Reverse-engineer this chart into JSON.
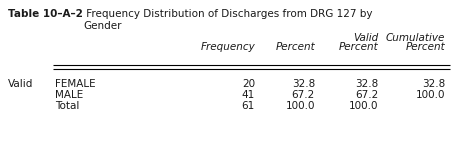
{
  "title_bold": "Table 10–A–2",
  "title_normal": " Frequency Distribution of Discharges from DRG 127 by\nGender",
  "col_headers": [
    "Frequency",
    "Percent",
    "Valid\nPercent",
    "Cumulative\nPercent"
  ],
  "rows": [
    [
      "Valid",
      "FEMALE",
      "20",
      "32.8",
      "32.8",
      "32.8"
    ],
    [
      "",
      "MALE",
      "41",
      "67.2",
      "67.2",
      "100.0"
    ],
    [
      "",
      "Total",
      "61",
      "100.0",
      "100.0",
      ""
    ]
  ],
  "fontsize": 7.5,
  "bg_color": "#ffffff",
  "text_color": "#1a1a1a"
}
